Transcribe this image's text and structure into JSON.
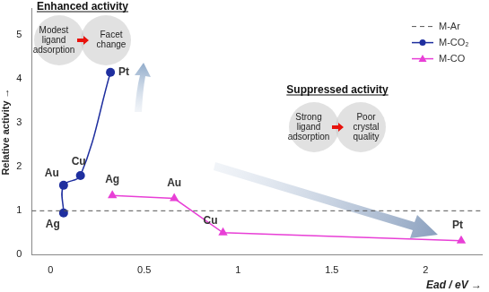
{
  "chart_data": {
    "type": "line",
    "x_label": "Ead / eV →",
    "y_label": "Relative activity →",
    "xlim": [
      -0.1,
      2.3
    ],
    "xticks": [
      0,
      0.5,
      1,
      1.5,
      2
    ],
    "ylim": [
      0,
      5.6
    ],
    "yticks": [
      0,
      1,
      2,
      3,
      4,
      5
    ],
    "grid": false,
    "legend": "upper right",
    "series": [
      {
        "name": "M-Ar",
        "color": "#555555",
        "line_style": "dashed",
        "marker": "none",
        "x": [
          -0.1,
          2.3
        ],
        "values": [
          1,
          1
        ]
      },
      {
        "name": "M-CO₂",
        "color": "#1f2f9f",
        "line_style": "smooth",
        "marker": "circle",
        "x": [
          0.07,
          0.07,
          0.16,
          0.32
        ],
        "values": [
          0.95,
          1.58,
          1.8,
          4.15
        ],
        "point_labels": [
          "Ag",
          "Au",
          "Cu",
          "Pt"
        ]
      },
      {
        "name": "M-CO",
        "color": "#e83fd6",
        "line_style": "solid",
        "marker": "triangle",
        "x": [
          0.33,
          0.66,
          0.92,
          2.19
        ],
        "values": [
          1.35,
          1.28,
          0.5,
          0.32
        ],
        "point_labels": [
          "Ag",
          "Au",
          "Cu",
          "Pt"
        ]
      }
    ],
    "annotations": [
      {
        "title": "Enhanced activity",
        "circles": [
          "Modest ligand adsorption",
          "Facet change"
        ]
      },
      {
        "title": "Suppressed activity",
        "circles": [
          "Strong ligand adsorption",
          "Poor crystal quality"
        ]
      }
    ]
  }
}
